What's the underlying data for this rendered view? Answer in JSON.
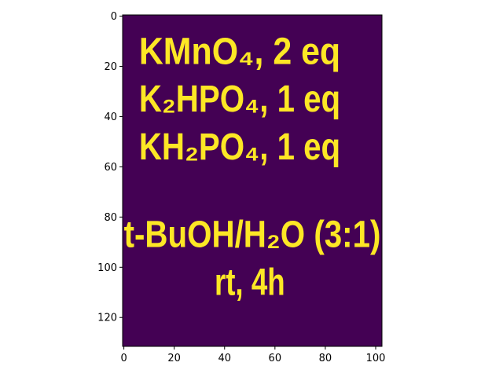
{
  "chart_data": {
    "type": "heatmap",
    "colormap": "viridis",
    "colors": {
      "background": "#440154",
      "foreground": "#fde725"
    },
    "xlim": [
      -0.5,
      102.5
    ],
    "ylim": [
      131.5,
      -0.5
    ],
    "x_ticks": [
      0,
      20,
      40,
      60,
      80,
      100
    ],
    "y_ticks": [
      0,
      20,
      40,
      60,
      80,
      100,
      120
    ],
    "x_tick_labels": [
      "0",
      "20",
      "40",
      "60",
      "80",
      "100"
    ],
    "y_tick_labels": [
      "0",
      "20",
      "40",
      "60",
      "80",
      "100",
      "120"
    ],
    "text_lines": [
      {
        "text": "KMnO₄, 2 eq",
        "x": 6,
        "y": 13
      },
      {
        "text": "K₂HPO₄, 1 eq",
        "x": 6,
        "y": 32
      },
      {
        "text": "KH₂PO₄, 1 eq",
        "x": 6,
        "y": 51
      },
      {
        "text": "t-BuOH/H₂O (3:1)",
        "x": 0,
        "y": 86
      },
      {
        "text": "rt, 4h",
        "x": 36,
        "y": 105
      }
    ],
    "title": "",
    "xlabel": "",
    "ylabel": ""
  }
}
